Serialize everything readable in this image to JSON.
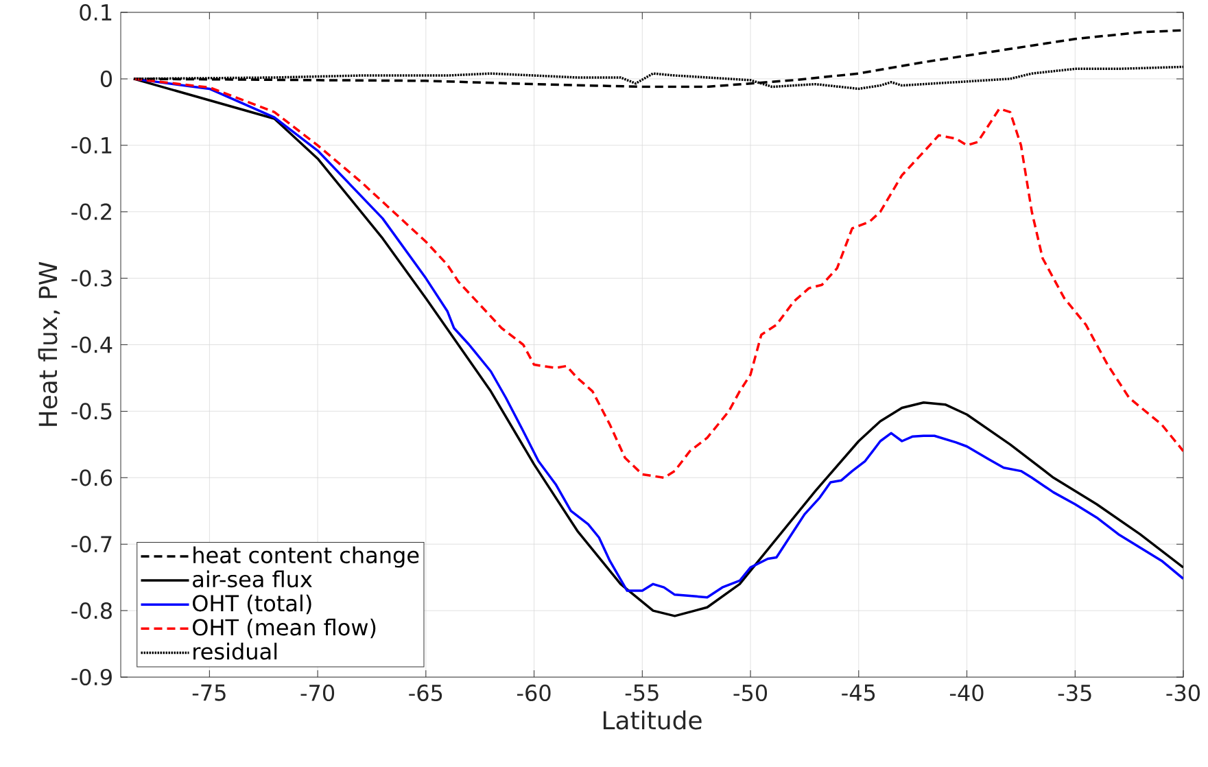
{
  "chart_data": {
    "type": "line",
    "xlabel": "Latitude",
    "ylabel": "Heat flux, PW",
    "xlim": [
      -79.1,
      -30
    ],
    "ylim": [
      -0.9,
      0.1
    ],
    "xticks": [
      -75,
      -70,
      -65,
      -60,
      -55,
      -50,
      -45,
      -40,
      -35,
      -30
    ],
    "yticks": [
      0.1,
      0,
      -0.1,
      -0.2,
      -0.3,
      -0.4,
      -0.5,
      -0.6,
      -0.7,
      -0.8,
      -0.9
    ],
    "grid": true,
    "legend": "bottom left",
    "series": [
      {
        "name": "heat content change",
        "color": "#000000",
        "line_style": "dashed",
        "x": [
          -78.5,
          -70,
          -65,
          -60,
          -55,
          -52,
          -50,
          -48,
          -45,
          -42,
          -40,
          -37,
          -35,
          -32,
          -30
        ],
        "values": [
          0,
          -0.002,
          -0.003,
          -0.008,
          -0.012,
          -0.012,
          -0.007,
          -0.002,
          0.008,
          0.025,
          0.035,
          0.05,
          0.06,
          0.07,
          0.073
        ]
      },
      {
        "name": "air-sea flux",
        "color": "#000000",
        "line_style": "solid",
        "x": [
          -78.5,
          -72,
          -70,
          -67,
          -65,
          -62,
          -60,
          -58,
          -56,
          -54.5,
          -53.5,
          -52,
          -50.5,
          -49,
          -47,
          -45,
          -44,
          -43,
          -42,
          -41,
          -40,
          -38,
          -36,
          -34,
          -32,
          -30
        ],
        "values": [
          0,
          -0.06,
          -0.12,
          -0.24,
          -0.33,
          -0.47,
          -0.58,
          -0.68,
          -0.76,
          -0.8,
          -0.808,
          -0.795,
          -0.76,
          -0.7,
          -0.62,
          -0.545,
          -0.515,
          -0.495,
          -0.487,
          -0.49,
          -0.505,
          -0.55,
          -0.6,
          -0.64,
          -0.685,
          -0.735
        ]
      },
      {
        "name": "OHT (total)",
        "color": "#0000ff",
        "line_style": "solid",
        "x": [
          -78.5,
          -75,
          -72,
          -70,
          -67,
          -65,
          -64,
          -63.7,
          -63,
          -62,
          -61.3,
          -60.5,
          -59.8,
          -59,
          -58.3,
          -57.5,
          -57,
          -56.5,
          -55.7,
          -55,
          -54.5,
          -54,
          -53.5,
          -52.7,
          -52,
          -51.3,
          -50.5,
          -50,
          -49.2,
          -48.8,
          -48,
          -47.5,
          -46.8,
          -46.3,
          -45.8,
          -45.3,
          -44.7,
          -44,
          -43.5,
          -43,
          -42.5,
          -42,
          -41.5,
          -40.5,
          -40,
          -39,
          -38.3,
          -37.5,
          -37,
          -36,
          -35,
          -34,
          -33,
          -32,
          -31,
          -30
        ],
        "values": [
          0,
          -0.015,
          -0.058,
          -0.108,
          -0.21,
          -0.3,
          -0.35,
          -0.375,
          -0.4,
          -0.44,
          -0.48,
          -0.53,
          -0.575,
          -0.61,
          -0.65,
          -0.67,
          -0.69,
          -0.725,
          -0.77,
          -0.77,
          -0.76,
          -0.765,
          -0.776,
          -0.778,
          -0.78,
          -0.765,
          -0.755,
          -0.735,
          -0.722,
          -0.72,
          -0.68,
          -0.655,
          -0.63,
          -0.607,
          -0.604,
          -0.59,
          -0.575,
          -0.545,
          -0.533,
          -0.545,
          -0.538,
          -0.537,
          -0.537,
          -0.547,
          -0.553,
          -0.572,
          -0.585,
          -0.59,
          -0.6,
          -0.622,
          -0.64,
          -0.66,
          -0.685,
          -0.705,
          -0.725,
          -0.752
        ]
      },
      {
        "name": "OHT (mean flow)",
        "color": "#ff0000",
        "line_style": "dashed",
        "x": [
          -78.5,
          -75,
          -72,
          -70,
          -68,
          -66.5,
          -65,
          -64,
          -63.5,
          -62.5,
          -61.5,
          -60.5,
          -60,
          -59,
          -58.5,
          -58,
          -57.3,
          -56.5,
          -55.8,
          -55,
          -54,
          -53.5,
          -52.8,
          -52,
          -51,
          -50.5,
          -50,
          -49.5,
          -48.8,
          -48,
          -47.3,
          -46.7,
          -46,
          -45.3,
          -44.5,
          -44,
          -43,
          -42,
          -41.3,
          -40.5,
          -40,
          -39.5,
          -39,
          -38.5,
          -38,
          -37.5,
          -37,
          -36.5,
          -35.5,
          -34.5,
          -33.5,
          -32.5,
          -31,
          -30
        ],
        "values": [
          0,
          -0.013,
          -0.05,
          -0.1,
          -0.155,
          -0.2,
          -0.245,
          -0.28,
          -0.305,
          -0.34,
          -0.375,
          -0.4,
          -0.43,
          -0.435,
          -0.432,
          -0.45,
          -0.47,
          -0.52,
          -0.57,
          -0.595,
          -0.6,
          -0.59,
          -0.56,
          -0.54,
          -0.5,
          -0.47,
          -0.445,
          -0.385,
          -0.37,
          -0.335,
          -0.315,
          -0.31,
          -0.285,
          -0.225,
          -0.215,
          -0.2,
          -0.145,
          -0.11,
          -0.085,
          -0.09,
          -0.1,
          -0.095,
          -0.07,
          -0.045,
          -0.05,
          -0.1,
          -0.2,
          -0.27,
          -0.33,
          -0.37,
          -0.43,
          -0.48,
          -0.52,
          -0.56
        ]
      },
      {
        "name": "residual",
        "color": "#000000",
        "line_style": "dotted",
        "x": [
          -78.5,
          -72,
          -68,
          -64,
          -62,
          -60,
          -58,
          -56,
          -55.3,
          -54.5,
          -53.5,
          -52,
          -50,
          -49,
          -47,
          -45,
          -44,
          -43.5,
          -43,
          -41,
          -39,
          -38,
          -37,
          -35,
          -33,
          -30
        ],
        "values": [
          0,
          0.002,
          0.005,
          0.005,
          0.008,
          0.005,
          0.002,
          0.002,
          -0.007,
          0.008,
          0.005,
          0.002,
          -0.002,
          -0.012,
          -0.008,
          -0.015,
          -0.01,
          -0.005,
          -0.01,
          -0.006,
          -0.002,
          0,
          0.008,
          0.015,
          0.015,
          0.018
        ]
      }
    ]
  }
}
